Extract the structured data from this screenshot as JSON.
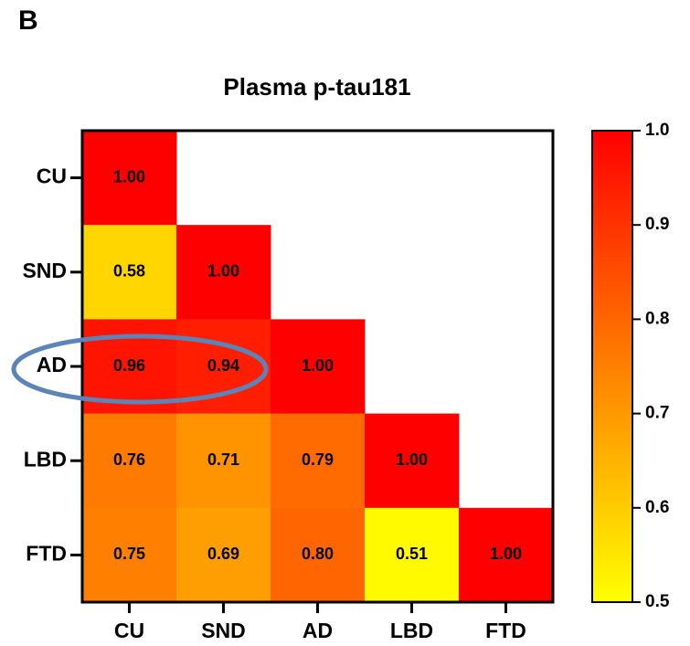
{
  "panel_label": "B",
  "chart_data": {
    "type": "heatmap",
    "title": "Plasma p-tau181",
    "x_categories": [
      "CU",
      "SND",
      "AD",
      "LBD",
      "FTD"
    ],
    "y_categories": [
      "CU",
      "SND",
      "AD",
      "LBD",
      "FTD"
    ],
    "values": [
      [
        1,
        null,
        null,
        null,
        null
      ],
      [
        0.58,
        1,
        null,
        null,
        null
      ],
      [
        0.96,
        0.94,
        1,
        null,
        null
      ],
      [
        0.76,
        0.71,
        0.79,
        1,
        null
      ],
      [
        0.75,
        0.69,
        0.8,
        0.51,
        1
      ]
    ],
    "value_labels": [
      [
        "1.00",
        null,
        null,
        null,
        null
      ],
      [
        "0.58",
        "1.00",
        null,
        null,
        null
      ],
      [
        "0.96",
        "0.94",
        "1.00",
        null,
        null
      ],
      [
        "0.76",
        "0.71",
        "0.79",
        "1.00",
        null
      ],
      [
        "0.75",
        "0.69",
        "0.80",
        "0.51",
        "1.00"
      ]
    ],
    "colorscale": [
      "#ffff00",
      "#ff0000"
    ],
    "clim": [
      0.5,
      1
    ],
    "cticks": [
      0.5,
      0.6,
      0.7,
      0.8,
      0.9,
      {
        "value": 1,
        "label": "1.0"
      }
    ]
  }
}
